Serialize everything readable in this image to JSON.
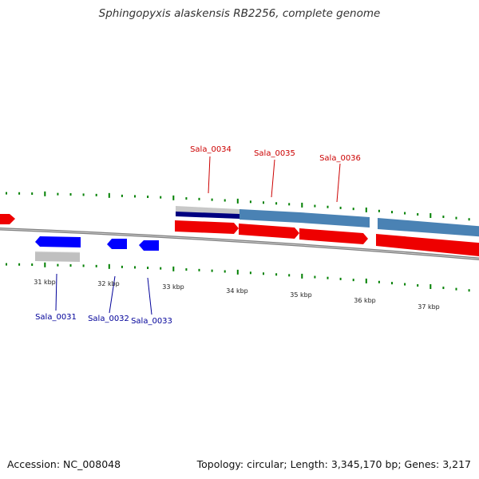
{
  "title": "Sphingopyxis alaskensis RB2256, complete genome",
  "footer": {
    "accession": "Accession: NC_008048",
    "summary": "Topology: circular; Length: 3,345,170 bp; Genes: 3,217"
  },
  "colors": {
    "forward": "#ff0000",
    "reverse": "#0000ff",
    "cds_forward": "#4682b4",
    "cds_reverse": "#c0c0c0",
    "dark": "#000080",
    "tick": "#008000",
    "backbone": "#808080",
    "label_forward": "#cc0000",
    "label_reverse": "#000099"
  },
  "scale_labels": [
    "31 kbp",
    "32 kbp",
    "33 kbp",
    "34 kbp",
    "35 kbp",
    "36 kbp",
    "37 kbp"
  ],
  "forward_genes": [
    "Sala_0034",
    "Sala_0035",
    "Sala_0036"
  ],
  "reverse_genes": [
    "Sala_0031",
    "Sala_0032",
    "Sala_0033"
  ]
}
